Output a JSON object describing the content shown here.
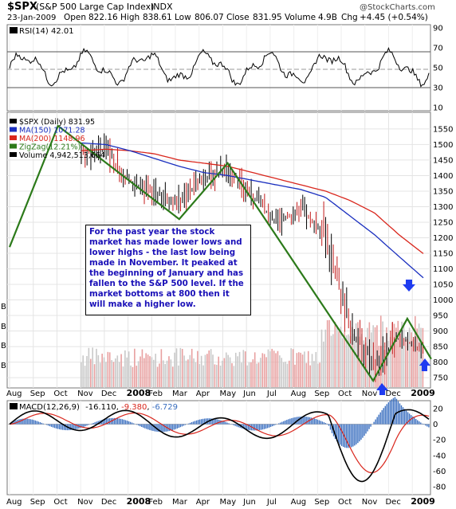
{
  "header": {
    "symbol": "$SPX",
    "name": "(S&P 500 Large Cap Index)",
    "exchange": "INDX",
    "date": "23-Jan-2009",
    "open_label": "Open",
    "open": "822.16",
    "high_label": "High",
    "high": "838.61",
    "low_label": "Low",
    "low": "806.07",
    "close_label": "Close",
    "close": "831.95",
    "volume_label": "Volume",
    "volume": "4.9B",
    "chg_label": "Chg",
    "chg": "+4.45 (+0.54%)",
    "watermark": "@StockCharts.com"
  },
  "rsi_panel": {
    "label": "RSI(14) 42.01",
    "ticks": [
      "90",
      "70",
      "50",
      "30",
      "10"
    ]
  },
  "price_panel": {
    "legend": [
      {
        "text": "$SPX (Daily) 831.95",
        "color": "#000000"
      },
      {
        "text": "MA(150) 1071.28",
        "color": "#1a2fbf"
      },
      {
        "text": "MA(200) 1148.96",
        "color": "#d9261c"
      },
      {
        "text": "ZigZag(12.21%)",
        "color": "#2c7a1a"
      },
      {
        "text": "Volume 4,942,513,664",
        "color": "#000000"
      }
    ],
    "ticks": [
      "1550",
      "1500",
      "1450",
      "1400",
      "1350",
      "1300",
      "1250",
      "1200",
      "1150",
      "1100",
      "1050",
      "1000",
      "950",
      "900",
      "850",
      "800",
      "750"
    ],
    "volume_axis_marks": [
      "B",
      "B",
      "B",
      "B"
    ],
    "annotation": "For the past year the stock market has made lower lows and lower highs - the last low being made in November.  It peaked at the beginning of January and has fallen to the S&P 500 level.  If the market bottoms at 800 then it will make a higher low."
  },
  "macd_panel": {
    "label_prefix": "MACD(12,26,9)",
    "macd_value": "-16.110",
    "signal_value": "-9.380",
    "hist_value": "-6.729",
    "ticks": [
      "0",
      "-20",
      "-40",
      "-60",
      "-80"
    ],
    "extra_tick": "20"
  },
  "x_axis": {
    "months": [
      "Aug",
      "Sep",
      "Oct",
      "Nov",
      "Dec",
      "2008",
      "Feb",
      "Mar",
      "Apr",
      "May",
      "Jun",
      "Jul",
      "Aug",
      "Sep",
      "Oct",
      "Nov",
      "Dec",
      "2009"
    ]
  },
  "chart_data": {
    "type": "line",
    "title": "$SPX (S&P 500 Large Cap Index) INDX",
    "x": [
      "Aug 2007",
      "Sep 2007",
      "Oct 2007",
      "Nov 2007",
      "Dec 2007",
      "Jan 2008",
      "Feb 2008",
      "Mar 2008",
      "Apr 2008",
      "May 2008",
      "Jun 2008",
      "Jul 2008",
      "Aug 2008",
      "Sep 2008",
      "Oct 2008",
      "Nov 2008",
      "Dec 2008",
      "Jan 2009"
    ],
    "series": [
      {
        "name": "$SPX (Daily)",
        "values": [
          1470,
          1500,
          1550,
          1470,
          1480,
          1380,
          1340,
          1320,
          1390,
          1420,
          1330,
          1250,
          1290,
          1200,
          900,
          800,
          880,
          830
        ]
      },
      {
        "name": "MA(150)",
        "values": [
          1495,
          1500,
          1505,
          1505,
          1500,
          1480,
          1455,
          1430,
          1410,
          1400,
          1385,
          1370,
          1355,
          1330,
          1270,
          1210,
          1140,
          1071.28
        ]
      },
      {
        "name": "MA(200)",
        "values": [
          1450,
          1460,
          1470,
          1480,
          1485,
          1480,
          1470,
          1450,
          1440,
          1430,
          1410,
          1390,
          1370,
          1350,
          1320,
          1280,
          1210,
          1148.96
        ]
      },
      {
        "name": "ZigZag(12.21%)",
        "points": [
          [
            "Aug 2007",
            1170
          ],
          [
            "Oct 2007",
            1560
          ],
          [
            "Mar 2008",
            1260
          ],
          [
            "May 2008",
            1440
          ],
          [
            "Nov 2008",
            740
          ],
          [
            "Jan 2009",
            940
          ],
          [
            "Jan 2009",
            810
          ]
        ]
      }
    ],
    "ylim": [
      720,
      1570
    ],
    "rsi": {
      "ylim": [
        10,
        90
      ],
      "levels": [
        30,
        50,
        70
      ]
    },
    "macd": {
      "ylim": [
        -85,
        25
      ]
    },
    "colors": {
      "price": "#000000",
      "ma150": "#1a2fbf",
      "ma200": "#d9261c",
      "zigzag": "#2c7a1a",
      "volume": "#e8a0a0",
      "macd_hist": "#3a6fc0",
      "arrow": "#1f3cf0"
    }
  }
}
